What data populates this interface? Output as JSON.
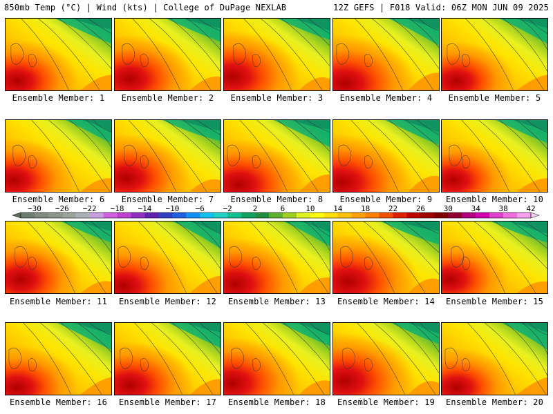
{
  "header": {
    "left": "850mb Temp (°C) | Wind (kts) | College of DuPage NEXLAB",
    "right": "12Z GEFS | F018 Valid: 06Z MON JUN 09 2025"
  },
  "members": [
    {
      "label": "Ensemble Member: 1"
    },
    {
      "label": "Ensemble Member: 2"
    },
    {
      "label": "Ensemble Member: 3"
    },
    {
      "label": "Ensemble Member: 4"
    },
    {
      "label": "Ensemble Member: 5"
    },
    {
      "label": "Ensemble Member: 6"
    },
    {
      "label": "Ensemble Member: 7"
    },
    {
      "label": "Ensemble Member: 8"
    },
    {
      "label": "Ensemble Member: 9"
    },
    {
      "label": "Ensemble Member: 10"
    },
    {
      "label": "Ensemble Member: 11"
    },
    {
      "label": "Ensemble Member: 12"
    },
    {
      "label": "Ensemble Member: 13"
    },
    {
      "label": "Ensemble Member: 14"
    },
    {
      "label": "Ensemble Member: 15"
    },
    {
      "label": "Ensemble Member: 16"
    },
    {
      "label": "Ensemble Member: 17"
    },
    {
      "label": "Ensemble Member: 18"
    },
    {
      "label": "Ensemble Member: 19"
    },
    {
      "label": "Ensemble Member: 20"
    }
  ],
  "colorbar": {
    "tick_labels": [
      "−30",
      "−26",
      "−22",
      "−18",
      "−14",
      "−10",
      "−6",
      "−2",
      "2",
      "6",
      "10",
      "14",
      "18",
      "22",
      "26",
      "30",
      "34",
      "38",
      "42"
    ],
    "colors": [
      "#6f7f6f",
      "#7f8c7f",
      "#8a978a",
      "#9aa59a",
      "#a9b3b9",
      "#c8a0e0",
      "#d060e0",
      "#c040d0",
      "#9030c0",
      "#6020b0",
      "#3040c0",
      "#2060e0",
      "#1090f0",
      "#10c0f0",
      "#20d0c0",
      "#10c090",
      "#10a060",
      "#209040",
      "#60b030",
      "#a0d020",
      "#e0f020",
      "#ffff00",
      "#ffe000",
      "#ffc000",
      "#ffa000",
      "#ff8000",
      "#f05000",
      "#e02000",
      "#c00000",
      "#a00000",
      "#800000",
      "#900030",
      "#b00080",
      "#d000b0",
      "#e040d0",
      "#f070e0",
      "#f8a0f0"
    ]
  }
}
